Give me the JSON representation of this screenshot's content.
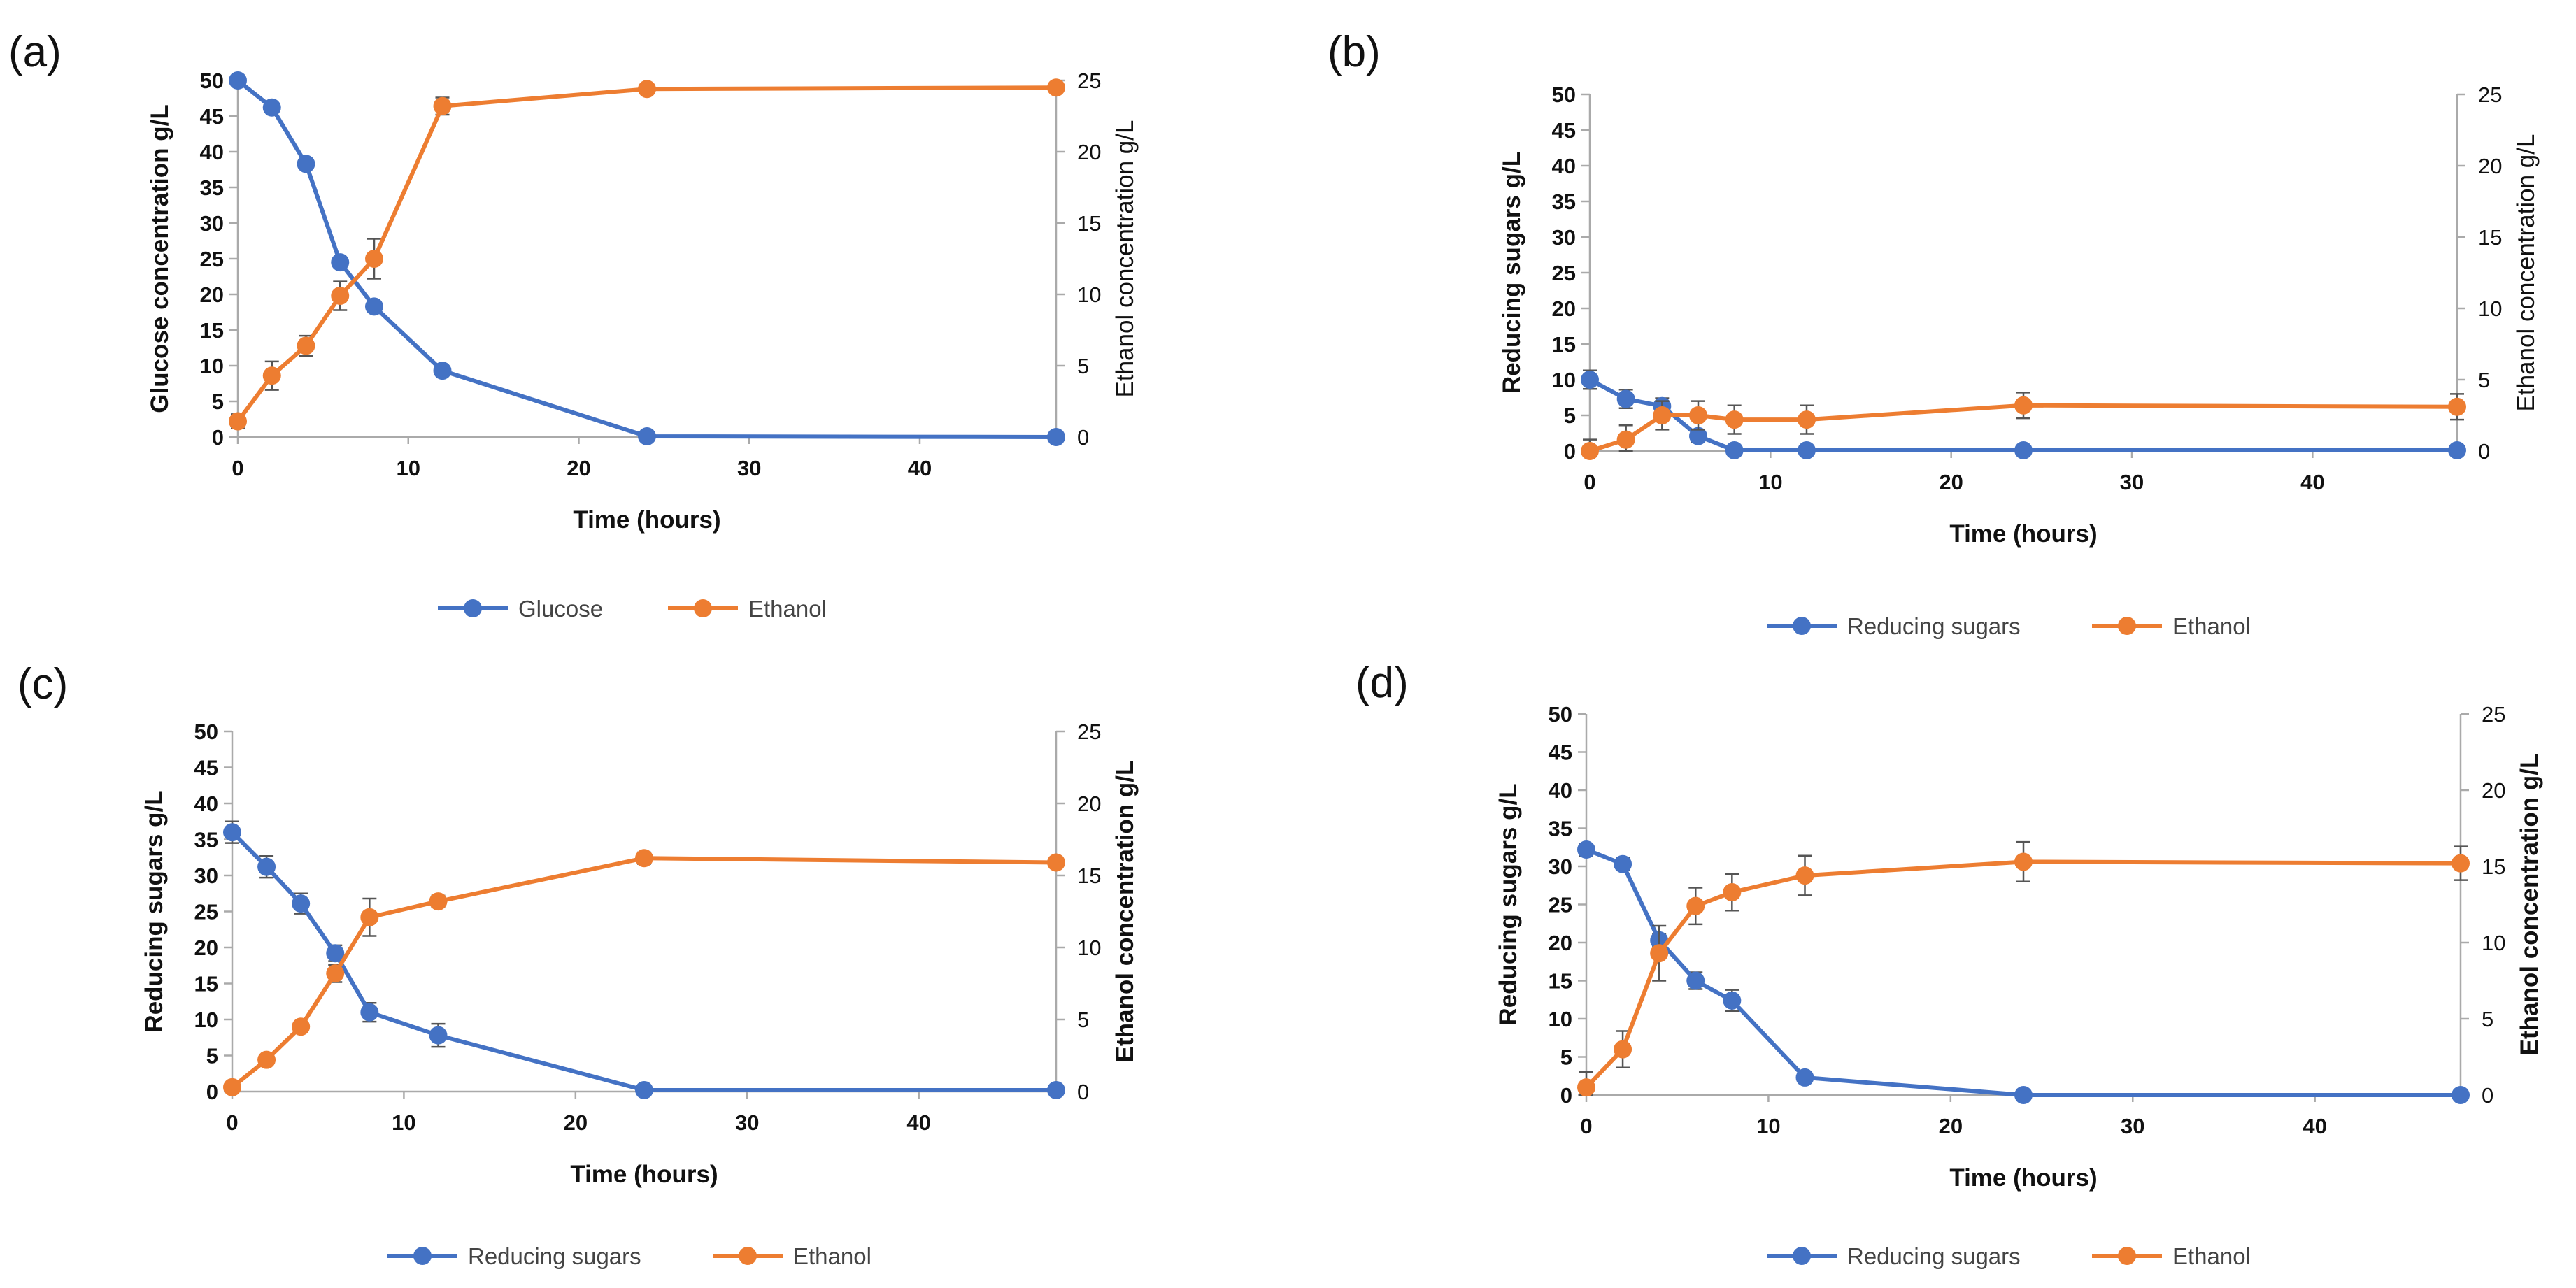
{
  "figure": {
    "panels": [
      "(a)",
      "(b)",
      "(c)",
      "(d)"
    ]
  },
  "chart_data": [
    {
      "panel": "(a)",
      "type": "line",
      "xlabel": "Time (hours)",
      "ylabel": "Glucose concentration g/L",
      "y2label": "Ethanol concentration g/L",
      "xlim": [
        0,
        48
      ],
      "xticks": [
        0,
        10,
        20,
        30,
        40
      ],
      "ylim": [
        0,
        50
      ],
      "yticks": [
        0,
        5,
        10,
        15,
        20,
        25,
        30,
        35,
        40,
        45,
        50
      ],
      "y2lim": [
        0,
        25
      ],
      "y2ticks": [
        0,
        5,
        10,
        15,
        20,
        25
      ],
      "legend_position": "bottom",
      "series": [
        {
          "name": "Glucose",
          "axis": "left",
          "color": "#4472C4",
          "x": [
            0,
            2,
            4,
            6,
            8,
            12,
            24,
            48
          ],
          "y": [
            50,
            46.2,
            38.3,
            24.5,
            18.3,
            9.3,
            0.1,
            0
          ],
          "err": [
            0.3,
            0.4,
            0.4,
            0.5,
            0.5,
            0.4,
            0.1,
            0
          ]
        },
        {
          "name": "Ethanol",
          "axis": "right",
          "color": "#ED7D31",
          "x": [
            0,
            2,
            4,
            6,
            8,
            12,
            24,
            48
          ],
          "y": [
            1.1,
            4.3,
            6.4,
            9.9,
            12.5,
            23.2,
            24.4,
            24.5
          ],
          "err": [
            0.5,
            1.0,
            0.7,
            1.0,
            1.4,
            0.6,
            0.2,
            0.2
          ]
        }
      ]
    },
    {
      "panel": "(b)",
      "type": "line",
      "xlabel": "Time (hours)",
      "ylabel": "Reducing sugars g/L",
      "y2label": "Ethanol concentration g/L",
      "xlim": [
        0,
        48
      ],
      "xticks": [
        0,
        10,
        20,
        30,
        40
      ],
      "ylim": [
        0,
        50
      ],
      "yticks": [
        0,
        5,
        10,
        15,
        20,
        25,
        30,
        35,
        40,
        45,
        50
      ],
      "y2lim": [
        0,
        25
      ],
      "y2ticks": [
        0,
        5,
        10,
        15,
        20,
        25
      ],
      "legend_position": "bottom",
      "series": [
        {
          "name": "Reducing sugars",
          "axis": "left",
          "color": "#4472C4",
          "x": [
            0,
            2,
            4,
            6,
            8,
            12,
            24,
            48
          ],
          "y": [
            10,
            7.3,
            6.3,
            2.1,
            0.1,
            0.1,
            0.1,
            0.1
          ],
          "err": [
            1.3,
            1.3,
            1.1,
            0.8,
            0.2,
            0.2,
            0.1,
            0.1
          ]
        },
        {
          "name": "Ethanol",
          "axis": "right",
          "color": "#ED7D31",
          "x": [
            0,
            2,
            4,
            6,
            8,
            12,
            24,
            48
          ],
          "y": [
            0,
            0.8,
            2.5,
            2.5,
            2.2,
            2.2,
            3.2,
            3.1
          ],
          "err": [
            0.8,
            1.0,
            1.0,
            1.0,
            1.0,
            1.0,
            0.9,
            0.9
          ]
        }
      ]
    },
    {
      "panel": "(c)",
      "type": "line",
      "xlabel": "Time (hours)",
      "ylabel": "Reducing sugars g/L",
      "y2label": "Ethanol concentration g/L",
      "xlim": [
        0,
        48
      ],
      "xticks": [
        0,
        10,
        20,
        30,
        40
      ],
      "ylim": [
        0,
        50
      ],
      "yticks": [
        0,
        5,
        10,
        15,
        20,
        25,
        30,
        35,
        40,
        45,
        50
      ],
      "y2lim": [
        0,
        25
      ],
      "y2ticks": [
        0,
        5,
        10,
        15,
        20,
        25
      ],
      "legend_position": "bottom",
      "series": [
        {
          "name": "Reducing sugars",
          "axis": "left",
          "color": "#4472C4",
          "x": [
            0,
            2,
            4,
            6,
            8,
            12,
            24,
            48
          ],
          "y": [
            36,
            31.2,
            26.1,
            19.2,
            11,
            7.8,
            0.2,
            0.2
          ],
          "err": [
            1.5,
            1.5,
            1.4,
            1.1,
            1.3,
            1.6,
            0.6,
            0.3
          ]
        },
        {
          "name": "Ethanol",
          "axis": "right",
          "color": "#ED7D31",
          "x": [
            0,
            2,
            4,
            6,
            8,
            12,
            24,
            48
          ],
          "y": [
            0.3,
            2.2,
            4.5,
            8.2,
            12.1,
            13.2,
            16.2,
            15.9
          ],
          "err": [
            0.2,
            0.3,
            0.3,
            0.6,
            1.3,
            0.4,
            0.4,
            0.3
          ]
        }
      ]
    },
    {
      "panel": "(d)",
      "type": "line",
      "xlabel": "Time (hours)",
      "ylabel": "Reducing sugars g/L",
      "y2label": "Ethanol concentration g/L",
      "xlim": [
        0,
        48
      ],
      "xticks": [
        0,
        10,
        20,
        30,
        40
      ],
      "ylim": [
        0,
        50
      ],
      "yticks": [
        0,
        5,
        10,
        15,
        20,
        25,
        30,
        35,
        40,
        45,
        50
      ],
      "y2lim": [
        0,
        25
      ],
      "y2ticks": [
        0,
        5,
        10,
        15,
        20,
        25
      ],
      "legend_position": "bottom",
      "series": [
        {
          "name": "Reducing sugars",
          "axis": "left",
          "color": "#4472C4",
          "x": [
            0,
            2,
            4,
            6,
            8,
            12,
            24,
            48
          ],
          "y": [
            32.2,
            30.3,
            20.3,
            15,
            12.4,
            2.3,
            0,
            0
          ],
          "err": [
            0.8,
            0.8,
            0.8,
            1.1,
            1.4,
            0.4,
            0.1,
            0.1
          ]
        },
        {
          "name": "Ethanol",
          "axis": "right",
          "color": "#ED7D31",
          "x": [
            0,
            2,
            4,
            6,
            8,
            12,
            24,
            48
          ],
          "y": [
            0.5,
            3,
            9.3,
            12.4,
            13.3,
            14.4,
            15.3,
            15.2
          ],
          "err": [
            1.0,
            1.2,
            1.8,
            1.2,
            1.2,
            1.3,
            1.3,
            1.1
          ]
        }
      ]
    }
  ]
}
